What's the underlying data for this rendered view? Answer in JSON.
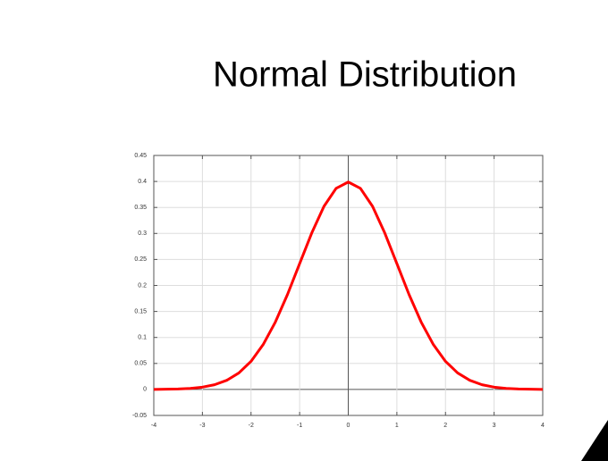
{
  "chart_data": {
    "type": "line",
    "title": "Normal Distribution",
    "x": [
      -4,
      -3.75,
      -3.5,
      -3.25,
      -3,
      -2.75,
      -2.5,
      -2.25,
      -2,
      -1.75,
      -1.5,
      -1.25,
      -1,
      -0.75,
      -0.5,
      -0.25,
      0,
      0.25,
      0.5,
      0.75,
      1,
      1.25,
      1.5,
      1.75,
      2,
      2.25,
      2.5,
      2.75,
      3,
      3.25,
      3.5,
      3.75,
      4
    ],
    "values": [
      0.0001,
      0.0004,
      0.0009,
      0.002,
      0.0044,
      0.0091,
      0.0175,
      0.0317,
      0.054,
      0.0863,
      0.1295,
      0.1826,
      0.242,
      0.3011,
      0.3521,
      0.3867,
      0.3989,
      0.3867,
      0.3521,
      0.3011,
      0.242,
      0.1826,
      0.1295,
      0.0863,
      0.054,
      0.0317,
      0.0175,
      0.0091,
      0.0044,
      0.002,
      0.0009,
      0.0004,
      0.0001
    ],
    "color": "#ff0000",
    "xlim": [
      -4,
      4
    ],
    "xticks": [
      -4,
      -3,
      -2,
      -1,
      0,
      1,
      2,
      3,
      4
    ],
    "ylim": [
      -0.05,
      0.45
    ],
    "yticks": [
      -0.05,
      0,
      0.05,
      0.1,
      0.15,
      0.2,
      0.25,
      0.3,
      0.35,
      0.4,
      0.45
    ],
    "grid": true
  }
}
